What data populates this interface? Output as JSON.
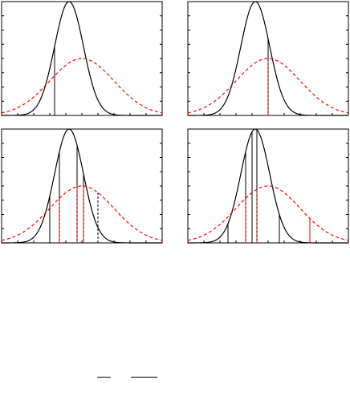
{
  "chart_data": [
    {
      "type": "line",
      "title": "",
      "xlabel": "",
      "ylabel": "",
      "xlim": [
        0,
        10
      ],
      "ylim": [
        0,
        1.0
      ],
      "grid": false,
      "series": [
        {
          "style": "solid",
          "color": "#000000",
          "mean": 4.2,
          "sd": 0.9,
          "peak": 1.0
        },
        {
          "style": "dashed",
          "color": "#ff0000",
          "mean": 5.0,
          "sd": 2.0,
          "peak": 0.5
        }
      ],
      "vlines": [
        {
          "x": 3.3,
          "color": "#000000",
          "style": "solid",
          "to": "narrow"
        }
      ]
    },
    {
      "type": "line",
      "title": "",
      "xlabel": "",
      "ylabel": "",
      "xlim": [
        0,
        10
      ],
      "ylim": [
        0,
        1.0
      ],
      "grid": false,
      "series": [
        {
          "style": "solid",
          "color": "#000000",
          "mean": 4.2,
          "sd": 0.9,
          "peak": 1.0
        },
        {
          "style": "dashed",
          "color": "#ff0000",
          "mean": 5.0,
          "sd": 2.0,
          "peak": 0.5
        }
      ],
      "vlines": [
        {
          "x": 5.0,
          "color": "#000000",
          "style": "solid",
          "to": "narrow"
        },
        {
          "x": 5.0,
          "color": "#ff0000",
          "style": "dashed",
          "to": "wide"
        }
      ]
    },
    {
      "type": "line",
      "title": "",
      "xlabel": "",
      "ylabel": "",
      "xlim": [
        0,
        10
      ],
      "ylim": [
        0,
        1.0
      ],
      "grid": false,
      "series": [
        {
          "style": "solid",
          "color": "#000000",
          "mean": 4.2,
          "sd": 0.9,
          "peak": 1.0
        },
        {
          "style": "dashed",
          "color": "#ff0000",
          "mean": 5.0,
          "sd": 2.0,
          "peak": 0.5
        }
      ],
      "vlines": [
        {
          "x": 3.0,
          "color": "#000000",
          "style": "solid",
          "to": "narrow"
        },
        {
          "x": 3.6,
          "color": "#000000",
          "style": "solid",
          "to": "narrow"
        },
        {
          "x": 3.6,
          "color": "#ff0000",
          "style": "dashed",
          "to": "wide"
        },
        {
          "x": 4.7,
          "color": "#000000",
          "style": "solid",
          "to": "narrow"
        },
        {
          "x": 4.7,
          "color": "#ff0000",
          "style": "dashed",
          "to": "wide"
        },
        {
          "x": 5.1,
          "color": "#000000",
          "style": "solid",
          "to": "narrow"
        },
        {
          "x": 5.1,
          "color": "#ff0000",
          "style": "dashed",
          "to": "wide"
        },
        {
          "x": 6.0,
          "color": "#000000",
          "style": "dashed",
          "to": "wide"
        }
      ]
    },
    {
      "type": "line",
      "title": "",
      "xlabel": "",
      "ylabel": "",
      "xlim": [
        0,
        10
      ],
      "ylim": [
        0,
        1.0
      ],
      "grid": false,
      "series": [
        {
          "style": "solid",
          "color": "#000000",
          "mean": 4.2,
          "sd": 0.9,
          "peak": 1.0
        },
        {
          "style": "dashed",
          "color": "#ff0000",
          "mean": 5.0,
          "sd": 2.0,
          "peak": 0.5
        }
      ],
      "vlines": [
        {
          "x": 2.5,
          "color": "#000000",
          "style": "solid",
          "to": "narrow"
        },
        {
          "x": 3.6,
          "color": "#000000",
          "style": "solid",
          "to": "narrow"
        },
        {
          "x": 3.6,
          "color": "#ff0000",
          "style": "dashed",
          "to": "wide"
        },
        {
          "x": 4.0,
          "color": "#000000",
          "style": "solid",
          "to": "narrow"
        },
        {
          "x": 4.3,
          "color": "#000000",
          "style": "solid",
          "to": "narrow"
        },
        {
          "x": 4.3,
          "color": "#ff0000",
          "style": "dashed",
          "to": "wide"
        },
        {
          "x": 5.7,
          "color": "#000000",
          "style": "solid",
          "to": "narrow"
        },
        {
          "x": 7.6,
          "color": "#ff0000",
          "style": "solid",
          "to": "wide"
        }
      ]
    }
  ]
}
